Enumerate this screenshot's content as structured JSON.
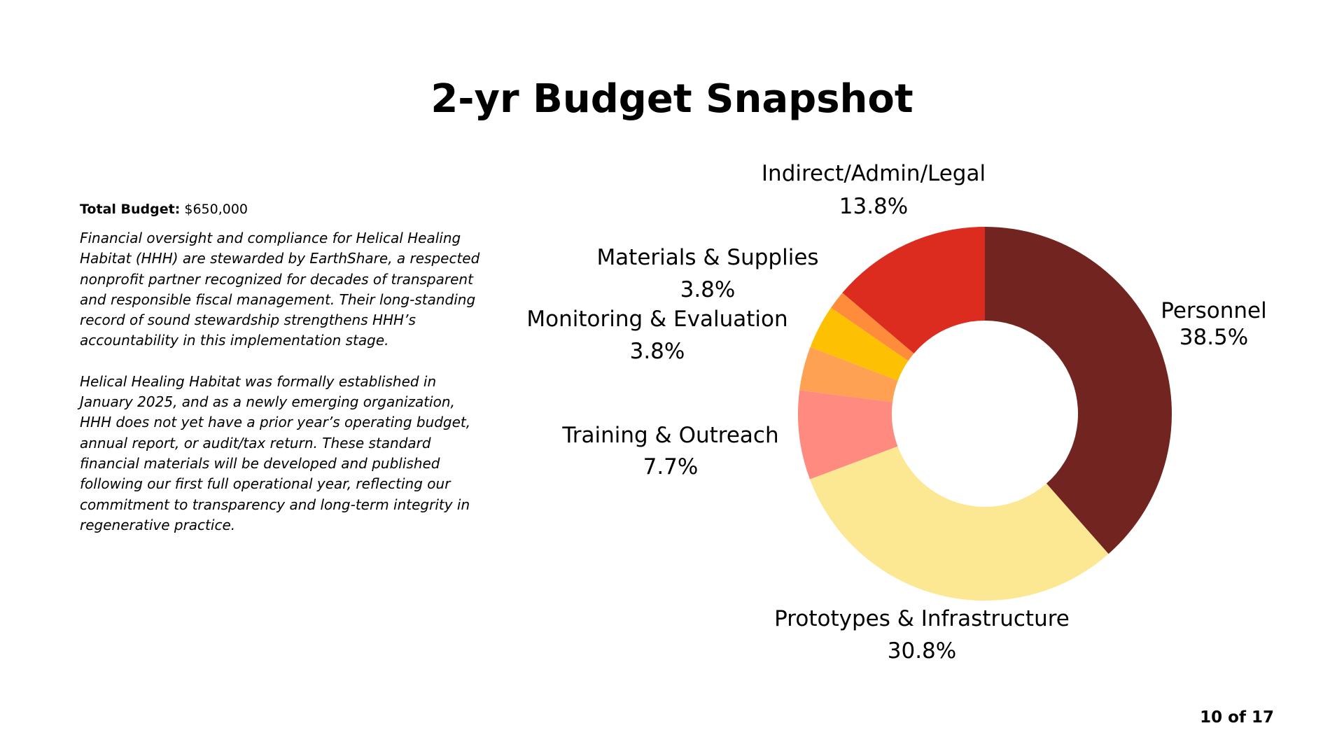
{
  "slide": {
    "title": "2-yr Budget Snapshot",
    "total_budget_label": "Total Budget:",
    "total_budget_value": " $650,000",
    "paragraph_1": "Financial oversight and compliance for Helical Healing Habitat (HHH) are stewarded by EarthShare, a respected nonprofit partner recognized for decades of transparent and responsible fiscal management. Their long-standing record of sound stewardship strengthens HHH’s accountability in this implementation stage.",
    "paragraph_2": "Helical Healing Habitat was formally established in January 2025, and as a newly emerging organization, HHH does not yet have a prior year’s operating budget, annual report, or audit/tax return. These standard financial materials will be developed and published following our first full operational year, reflecting our commitment to transparency and long-term integrity in regenerative practice.",
    "page_number": "10 of 17"
  },
  "chart_data": {
    "type": "pie",
    "style": "donut",
    "title": "",
    "categories": [
      "Personnel",
      "Prototypes & Infrastructure",
      "Training & Outreach",
      "Monitoring & Evaluation",
      "Materials & Supplies",
      "Indirect/Admin/Legal"
    ],
    "values": [
      38.5,
      30.8,
      7.7,
      3.8,
      3.8,
      13.8
    ],
    "value_labels": [
      "38.5%",
      "30.8%",
      "7.7%",
      "3.8%",
      "3.8%",
      "13.8%"
    ],
    "colors": [
      "#722520",
      "#FCE792",
      "#FF8A80",
      "#FFA153",
      "#FEC003",
      "#DC2B1F"
    ],
    "extra_slice_color": "#FF8C3A",
    "start_angle": "12 o'clock",
    "direction": "clockwise",
    "legend": "none (labels outside slices)"
  }
}
